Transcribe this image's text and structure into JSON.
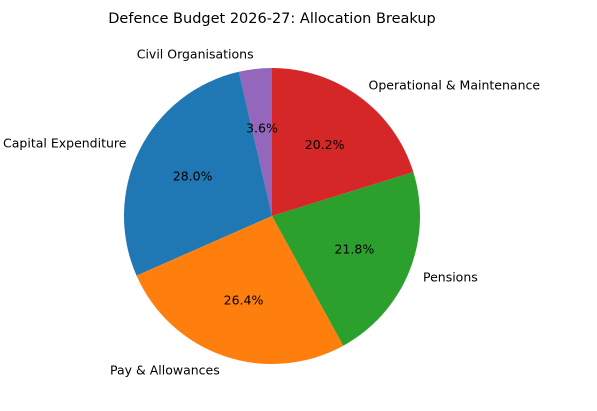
{
  "chart_data": {
    "type": "pie",
    "title": "Defence Budget 2026-27: Allocation Breakup",
    "start_angle_deg": 90,
    "direction": "counterclockwise",
    "slices": [
      {
        "label": "Civil Organisations",
        "value": 3.6,
        "pct_label": "3.6%",
        "color": "#9467bd"
      },
      {
        "label": "Capital Expenditure",
        "value": 28.0,
        "pct_label": "28.0%",
        "color": "#1f77b4"
      },
      {
        "label": "Pay & Allowances",
        "value": 26.4,
        "pct_label": "26.4%",
        "color": "#ff7f0e"
      },
      {
        "label": "Pensions",
        "value": 21.8,
        "pct_label": "21.8%",
        "color": "#2ca02c"
      },
      {
        "label": "Operational & Maintenance",
        "value": 20.2,
        "pct_label": "20.2%",
        "color": "#d62728"
      }
    ]
  }
}
